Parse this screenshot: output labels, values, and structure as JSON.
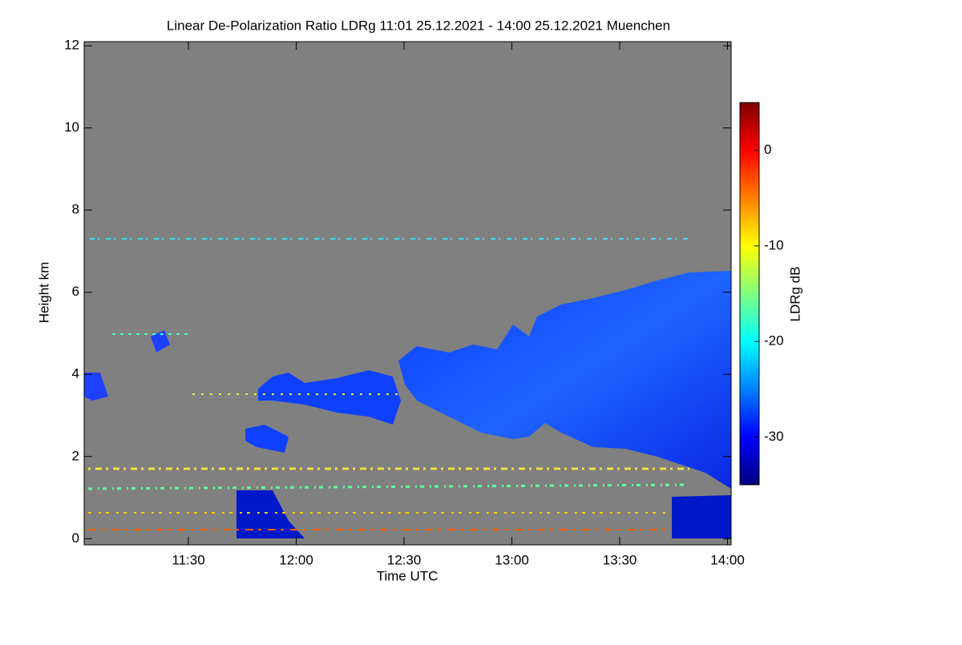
{
  "chart_data": {
    "type": "heatmap",
    "title": "Linear De-Polarization Ratio LDRg   11:01 25.12.2021 - 14:00 25.12.2021 Muenchen",
    "x_label": "Time UTC",
    "y_label": "Height km",
    "xlim": [
      661,
      841
    ],
    "xticks": [
      {
        "value": 690,
        "label": "11:30"
      },
      {
        "value": 720,
        "label": "12:00"
      },
      {
        "value": 750,
        "label": "12:30"
      },
      {
        "value": 780,
        "label": "13:00"
      },
      {
        "value": 810,
        "label": "13:30"
      },
      {
        "value": 840,
        "label": "14:00"
      }
    ],
    "ylim": [
      -0.15,
      12.1
    ],
    "yticks": [
      0,
      2,
      4,
      6,
      8,
      10,
      12
    ],
    "colorbar": {
      "label": "LDRg dB",
      "lim": [
        -35,
        5
      ],
      "ticks": [
        0,
        -10,
        -20,
        -30
      ],
      "colormap": [
        "#00007f",
        "#0000ff",
        "#0080ff",
        "#00ffff",
        "#80ff80",
        "#ffff00",
        "#ff8000",
        "#ff0000",
        "#7f0000"
      ]
    },
    "background": "#808080"
  }
}
